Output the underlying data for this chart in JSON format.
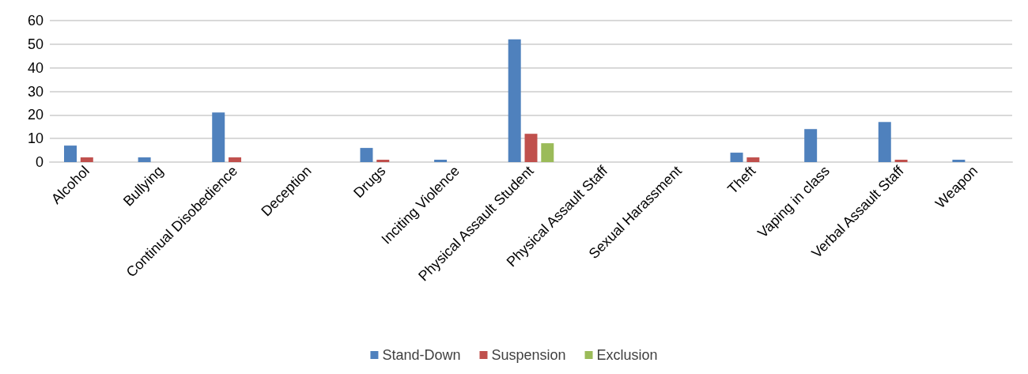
{
  "chart_data": {
    "type": "bar",
    "categories": [
      "Alcohol",
      "Bullying",
      "Continual Disobedience",
      "Deception",
      "Drugs",
      "Inciting Violence",
      "Physical Assault Student",
      "Physical Assault Staff",
      "Sexual Harassment",
      "Theft",
      "Vaping in class",
      "Verbal Assault Staff",
      "Weapon"
    ],
    "series": [
      {
        "name": "Stand-Down",
        "color": "#4f81bd",
        "values": [
          7,
          2,
          21,
          null,
          6,
          1,
          52,
          null,
          null,
          4,
          14,
          17,
          1
        ]
      },
      {
        "name": "Suspension",
        "color": "#c0504d",
        "values": [
          2,
          null,
          2,
          null,
          1,
          null,
          12,
          null,
          null,
          2,
          null,
          1,
          null
        ]
      },
      {
        "name": "Exclusion",
        "color": "#9bbb59",
        "values": [
          null,
          null,
          null,
          null,
          null,
          null,
          8,
          null,
          null,
          null,
          null,
          null,
          null
        ]
      }
    ],
    "ylim": [
      0,
      60
    ],
    "yticks": [
      0,
      10,
      20,
      30,
      40,
      50,
      60
    ],
    "grid": "y",
    "legend": "bottom"
  }
}
